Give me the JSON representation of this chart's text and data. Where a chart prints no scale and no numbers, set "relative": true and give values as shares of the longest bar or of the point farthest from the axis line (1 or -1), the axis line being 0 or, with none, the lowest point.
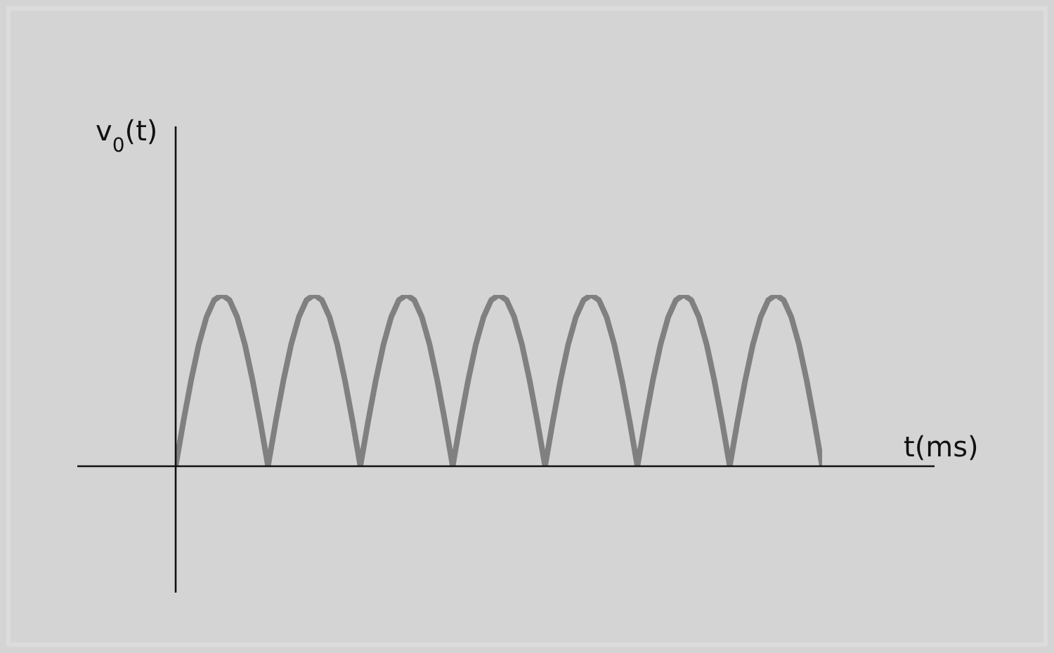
{
  "chart_data": {
    "type": "line",
    "relative": true,
    "ylabel": "v$_{0}$(t)",
    "xlabel": "t(ms)",
    "categories": [
      null,
      null,
      null,
      null,
      null,
      null,
      null,
      null,
      null,
      null,
      null,
      null,
      null,
      null,
      null,
      null,
      null,
      null,
      null,
      null,
      null,
      null,
      null,
      null,
      null,
      null,
      null,
      null,
      null,
      null,
      null,
      null,
      null,
      null,
      null,
      null,
      null,
      null,
      null,
      null,
      null,
      null,
      null,
      null,
      null,
      null,
      null,
      null,
      null,
      null,
      null,
      null,
      null,
      null,
      null,
      null,
      null,
      null,
      null,
      null,
      null,
      null,
      null,
      null,
      null,
      null,
      null,
      null,
      null,
      null,
      null,
      null,
      null,
      null,
      null,
      null,
      null,
      null,
      null,
      null,
      null,
      null,
      null,
      null,
      null
    ],
    "series": [
      {
        "color": "#808080",
        "values": [
          0,
          0.26,
          0.5,
          0.71,
          0.87,
          0.97,
          1,
          0.97,
          0.87,
          0.71,
          0.5,
          0.26,
          0,
          0.26,
          0.5,
          0.71,
          0.87,
          0.97,
          1,
          0.97,
          0.87,
          0.71,
          0.5,
          0.26,
          0,
          0.26,
          0.5,
          0.71,
          0.87,
          0.97,
          1,
          0.97,
          0.87,
          0.71,
          0.5,
          0.26,
          0,
          0.26,
          0.5,
          0.71,
          0.87,
          0.97,
          1,
          0.97,
          0.87,
          0.71,
          0.5,
          0.26,
          0,
          0.26,
          0.5,
          0.71,
          0.87,
          0.97,
          1,
          0.97,
          0.87,
          0.71,
          0.5,
          0.26,
          0,
          0.26,
          0.5,
          0.71,
          0.87,
          0.97,
          1,
          0.97,
          0.87,
          0.71,
          0.5,
          0.26,
          0,
          0.26,
          0.5,
          0.71,
          0.87,
          0.97,
          1,
          0.97,
          0.87,
          0.71,
          0.5,
          0.26,
          0
        ]
      }
    ],
    "marker": "none",
    "line_style": "solid",
    "grid": false
  }
}
